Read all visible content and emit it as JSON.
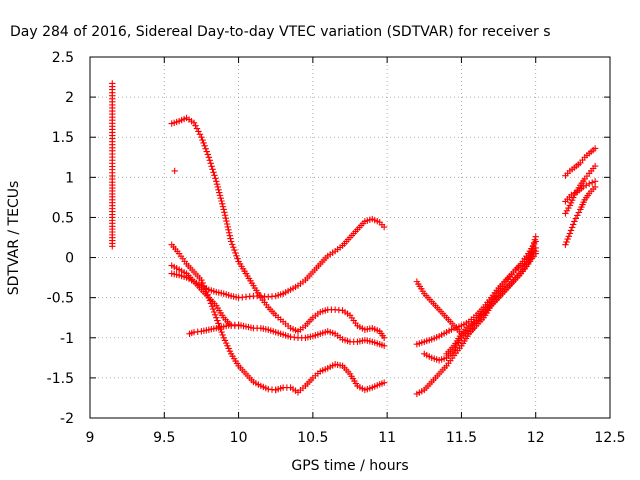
{
  "chart_data": {
    "type": "scatter",
    "title": "Day 284 of 2016, Sidereal Day-to-day VTEC variation (SDTVAR) for receiver s",
    "xlabel": "GPS time / hours",
    "ylabel": "SDTVAR / TECUs",
    "xlim": [
      9,
      12.5
    ],
    "ylim": [
      -2,
      2.5
    ],
    "xticks": [
      9,
      9.5,
      10,
      10.5,
      11,
      11.5,
      12,
      12.5
    ],
    "xtick_labels": [
      "9",
      "9.5",
      "10",
      "10.5",
      "11",
      "11.5",
      "12",
      "12.5"
    ],
    "yticks": [
      -2,
      -1.5,
      -1,
      -0.5,
      0,
      0.5,
      1,
      1.5,
      2,
      2.5
    ],
    "ytick_labels": [
      "-2",
      "-1.5",
      "-1",
      "-0.5",
      "0",
      "0.5",
      "1",
      "1.5",
      "2",
      "2.5"
    ],
    "grid": true,
    "marker": "+",
    "color": "#ff0000",
    "series": [
      {
        "name": "isolated-9.15",
        "x": [
          9.15,
          9.15,
          9.15,
          9.15,
          9.15
        ],
        "y": [
          2.17,
          1.33,
          0.94,
          0.39,
          0.14
        ]
      },
      {
        "name": "isolated-9.57",
        "x": [
          9.57
        ],
        "y": [
          1.08
        ]
      },
      {
        "name": "arc-a",
        "x": [
          9.55,
          9.6,
          9.65,
          9.7,
          9.75,
          9.8,
          9.85,
          9.9,
          9.95,
          10.0,
          10.05
        ],
        "y": [
          1.67,
          1.7,
          1.74,
          1.68,
          1.5,
          1.25,
          0.95,
          0.6,
          0.2,
          -0.05,
          -0.2
        ]
      },
      {
        "name": "arc-a2",
        "x": [
          10.05,
          10.1,
          10.15,
          10.2,
          10.25,
          10.3,
          10.35,
          10.4
        ],
        "y": [
          -0.2,
          -0.35,
          -0.5,
          -0.62,
          -0.72,
          -0.8,
          -0.88,
          -0.92
        ]
      },
      {
        "name": "arc-a3",
        "x": [
          10.4,
          10.45,
          10.5,
          10.55,
          10.6,
          10.65,
          10.7,
          10.75,
          10.8,
          10.85,
          10.9,
          10.95,
          10.98
        ],
        "y": [
          -0.92,
          -0.85,
          -0.75,
          -0.68,
          -0.65,
          -0.65,
          -0.66,
          -0.72,
          -0.85,
          -0.9,
          -0.88,
          -0.92,
          -1.0
        ]
      },
      {
        "name": "arc-b",
        "x": [
          9.55,
          9.6,
          9.65,
          9.7,
          9.75,
          9.8,
          9.85,
          9.9,
          9.95,
          10.0,
          10.05,
          10.1,
          10.15,
          10.2,
          10.25
        ],
        "y": [
          0.16,
          0.05,
          -0.08,
          -0.18,
          -0.28,
          -0.5,
          -0.75,
          -1.0,
          -1.2,
          -1.35,
          -1.45,
          -1.55,
          -1.6,
          -1.64,
          -1.65
        ]
      },
      {
        "name": "arc-b2",
        "x": [
          10.25,
          10.3,
          10.35,
          10.4,
          10.45,
          10.5,
          10.55,
          10.6,
          10.65,
          10.7,
          10.75,
          10.8,
          10.85,
          10.9,
          10.95,
          10.98
        ],
        "y": [
          -1.65,
          -1.62,
          -1.62,
          -1.68,
          -1.6,
          -1.5,
          -1.42,
          -1.38,
          -1.33,
          -1.35,
          -1.45,
          -1.6,
          -1.65,
          -1.62,
          -1.58,
          -1.56
        ]
      },
      {
        "name": "arc-c",
        "x": [
          9.55,
          9.6,
          9.65,
          9.7,
          9.75,
          9.8,
          9.85,
          9.9,
          9.95,
          10.0,
          10.05,
          10.1,
          10.15,
          10.2,
          10.25,
          10.3
        ],
        "y": [
          -0.2,
          -0.22,
          -0.25,
          -0.3,
          -0.35,
          -0.4,
          -0.43,
          -0.45,
          -0.48,
          -0.5,
          -0.49,
          -0.48,
          -0.48,
          -0.49,
          -0.48,
          -0.45
        ]
      },
      {
        "name": "arc-c2",
        "x": [
          10.3,
          10.35,
          10.4,
          10.45,
          10.5,
          10.55,
          10.6,
          10.65,
          10.7,
          10.75,
          10.8,
          10.85,
          10.9,
          10.95,
          10.98
        ],
        "y": [
          -0.45,
          -0.4,
          -0.35,
          -0.28,
          -0.18,
          -0.08,
          0.02,
          0.08,
          0.15,
          0.25,
          0.35,
          0.45,
          0.48,
          0.44,
          0.38
        ]
      },
      {
        "name": "arc-d",
        "x": [
          9.55,
          9.6,
          9.65,
          9.7,
          9.75,
          9.8,
          9.85,
          9.9,
          9.95,
          10.0
        ],
        "y": [
          -0.1,
          -0.15,
          -0.2,
          -0.3,
          -0.4,
          -0.5,
          -0.6,
          -0.75,
          -0.85,
          -0.85
        ]
      },
      {
        "name": "arc-e",
        "x": [
          9.67,
          9.7,
          9.75,
          9.8,
          9.85,
          9.9,
          9.95,
          10.0,
          10.05,
          10.1,
          10.15,
          10.2,
          10.25,
          10.3,
          10.35,
          10.4,
          10.45,
          10.5,
          10.55,
          10.6,
          10.65,
          10.7,
          10.75,
          10.8,
          10.85,
          10.9,
          10.95,
          10.98
        ],
        "y": [
          -0.95,
          -0.93,
          -0.92,
          -0.9,
          -0.88,
          -0.86,
          -0.84,
          -0.84,
          -0.86,
          -0.88,
          -0.88,
          -0.9,
          -0.93,
          -0.96,
          -0.99,
          -1.0,
          -1.0,
          -0.98,
          -0.95,
          -0.92,
          -0.95,
          -1.02,
          -1.05,
          -1.05,
          -1.03,
          -1.05,
          -1.08,
          -1.1
        ]
      },
      {
        "name": "arc-f",
        "x": [
          11.2,
          11.25,
          11.3,
          11.35,
          11.4,
          11.45,
          11.5,
          11.55,
          11.6,
          11.65,
          11.7,
          11.75,
          11.8,
          11.85,
          11.9,
          11.95,
          12.0
        ],
        "y": [
          -0.3,
          -0.45,
          -0.55,
          -0.65,
          -0.75,
          -0.85,
          -0.95,
          -0.95,
          -0.85,
          -0.75,
          -0.6,
          -0.5,
          -0.4,
          -0.3,
          -0.2,
          -0.08,
          0.05
        ]
      },
      {
        "name": "arc-g",
        "x": [
          11.2,
          11.25,
          11.3,
          11.35,
          11.4,
          11.45,
          11.5,
          11.55,
          11.6,
          11.65,
          11.7,
          11.75,
          11.8,
          11.85,
          11.9,
          11.95,
          12.0
        ],
        "y": [
          -1.08,
          -1.05,
          -1.02,
          -0.98,
          -0.93,
          -0.88,
          -0.85,
          -0.8,
          -0.72,
          -0.62,
          -0.5,
          -0.38,
          -0.28,
          -0.18,
          -0.1,
          0.0,
          0.12
        ]
      },
      {
        "name": "arc-h",
        "x": [
          11.2,
          11.25,
          11.3,
          11.35,
          11.4,
          11.45,
          11.5,
          11.55,
          11.6,
          11.65,
          11.7,
          11.75,
          11.8,
          11.85,
          11.9,
          11.95,
          12.0
        ],
        "y": [
          -1.7,
          -1.65,
          -1.55,
          -1.45,
          -1.35,
          -1.22,
          -1.1,
          -0.95,
          -0.82,
          -0.68,
          -0.55,
          -0.42,
          -0.3,
          -0.18,
          -0.08,
          0.05,
          0.2
        ]
      },
      {
        "name": "arc-i",
        "x": [
          11.25,
          11.3,
          11.35,
          11.4,
          11.45,
          11.5,
          11.55,
          11.6,
          11.65,
          11.7,
          11.75,
          11.8,
          11.85,
          11.9,
          11.95,
          12.0
        ],
        "y": [
          -1.2,
          -1.25,
          -1.28,
          -1.25,
          -1.15,
          -1.0,
          -0.88,
          -0.78,
          -0.68,
          -0.58,
          -0.48,
          -0.38,
          -0.28,
          -0.18,
          -0.06,
          0.08
        ]
      },
      {
        "name": "arc-j",
        "x": [
          11.4,
          11.45,
          11.5,
          11.55,
          11.6,
          11.65,
          11.7,
          11.75,
          11.8,
          11.85,
          11.9,
          11.95,
          12.0
        ],
        "y": [
          -1.2,
          -1.1,
          -0.95,
          -0.85,
          -0.78,
          -0.7,
          -0.6,
          -0.5,
          -0.4,
          -0.3,
          -0.2,
          -0.08,
          0.26
        ]
      },
      {
        "name": "arc-k",
        "x": [
          12.2,
          12.23,
          12.26,
          12.3,
          12.33,
          12.36,
          12.4
        ],
        "y": [
          1.02,
          1.08,
          1.12,
          1.18,
          1.25,
          1.3,
          1.36
        ]
      },
      {
        "name": "arc-l",
        "x": [
          12.2,
          12.23,
          12.26,
          12.3,
          12.33,
          12.36,
          12.4
        ],
        "y": [
          0.55,
          0.65,
          0.78,
          0.9,
          0.98,
          1.05,
          1.14
        ]
      },
      {
        "name": "arc-m",
        "x": [
          12.2,
          12.23,
          12.26,
          12.3,
          12.33,
          12.36,
          12.4
        ],
        "y": [
          0.16,
          0.3,
          0.45,
          0.6,
          0.72,
          0.8,
          0.88
        ]
      },
      {
        "name": "arc-n",
        "x": [
          12.2,
          12.24,
          12.28,
          12.32,
          12.36,
          12.4
        ],
        "y": [
          0.7,
          0.78,
          0.82,
          0.88,
          0.92,
          0.95
        ]
      }
    ]
  }
}
